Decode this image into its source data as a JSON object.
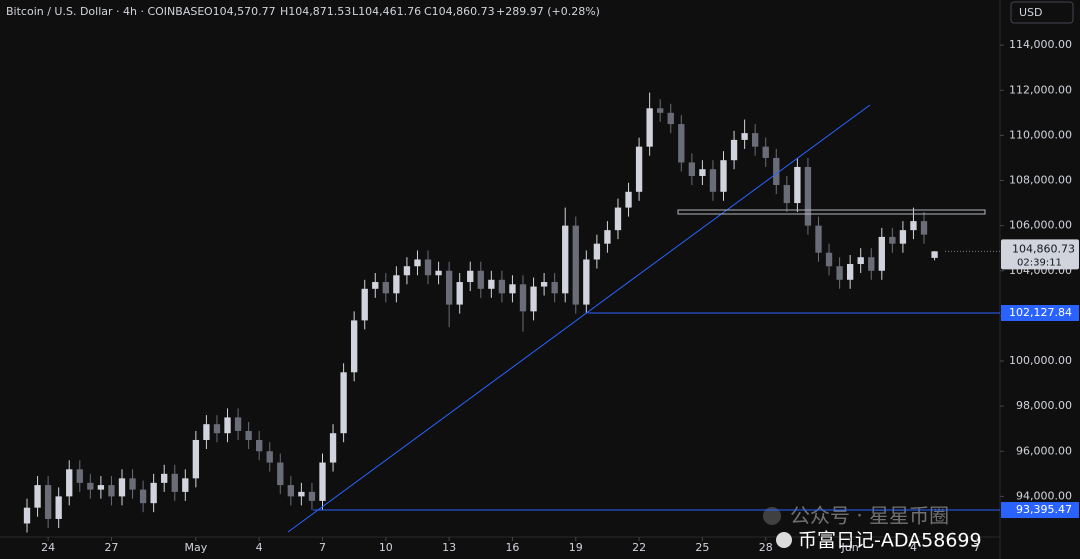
{
  "chart_data": {
    "type": "candlestick",
    "header": {
      "symbol": "Bitcoin / U.S. Dollar · 4h · COINBASE",
      "ohlc_labels": [
        "O104,570.77",
        "H104,871.53",
        "L104,461.76",
        "C104,860.73"
      ],
      "change_label": "+289.97 (+0.28%)"
    },
    "currency": "USD",
    "up_color": "#d1d4dc",
    "down_color": "#6a6d78",
    "xlim": [
      -2.56,
      92.2
    ],
    "xticks": [
      {
        "value": 2,
        "label": "24"
      },
      {
        "value": 8,
        "label": "27"
      },
      {
        "value": 16,
        "label": "May"
      },
      {
        "value": 22,
        "label": "4"
      },
      {
        "value": 28,
        "label": "7"
      },
      {
        "value": 34,
        "label": "10"
      },
      {
        "value": 40,
        "label": "13"
      },
      {
        "value": 46,
        "label": "16"
      },
      {
        "value": 52,
        "label": "19"
      },
      {
        "value": 58,
        "label": "22"
      },
      {
        "value": 64,
        "label": "25"
      },
      {
        "value": 70,
        "label": "28"
      },
      {
        "value": 78,
        "label": "Jun"
      },
      {
        "value": 84,
        "label": "4"
      },
      {
        "value": 90,
        "label": "7"
      }
    ],
    "ylim": [
      92200,
      116000
    ],
    "yticks": [
      {
        "value": 94000,
        "label": "94,000.00"
      },
      {
        "value": 96000,
        "label": "96,000.00"
      },
      {
        "value": 98000,
        "label": "98,000.00"
      },
      {
        "value": 100000,
        "label": "100,000.00"
      },
      {
        "value": 102000,
        "label": "102,000.00"
      },
      {
        "value": 104000,
        "label": "104,000.00"
      },
      {
        "value": 106000,
        "label": "106,000.00"
      },
      {
        "value": 108000,
        "label": "108,000.00"
      },
      {
        "value": 110000,
        "label": "110,000.00"
      },
      {
        "value": 112000,
        "label": "112,000.00"
      },
      {
        "value": 114000,
        "label": "114,000.00"
      }
    ],
    "levels": [
      {
        "value": 102127.84,
        "label": "102,127.84"
      },
      {
        "value": 93395.47,
        "label": "93,395.47"
      }
    ],
    "last_price": {
      "value": 104860.73,
      "label": "104,860.73",
      "countdown": "02:39:11"
    },
    "ohlc": [
      [
        92800,
        93900,
        92400,
        93500
      ],
      [
        93500,
        94900,
        93100,
        94500
      ],
      [
        94500,
        94900,
        92600,
        93000
      ],
      [
        93000,
        94400,
        92600,
        94000
      ],
      [
        94000,
        95600,
        93600,
        95200
      ],
      [
        95200,
        95600,
        94200,
        94600
      ],
      [
        94600,
        95000,
        93900,
        94300
      ],
      [
        94300,
        94900,
        93900,
        94500
      ],
      [
        94500,
        94900,
        93600,
        94000
      ],
      [
        94000,
        95200,
        93600,
        94800
      ],
      [
        94800,
        95200,
        93900,
        94300
      ],
      [
        94300,
        94700,
        93300,
        93700
      ],
      [
        93700,
        95000,
        93300,
        94600
      ],
      [
        94600,
        95400,
        94200,
        95000
      ],
      [
        95000,
        95400,
        93800,
        94200
      ],
      [
        94200,
        95200,
        93800,
        94800
      ],
      [
        94800,
        96900,
        94400,
        96500
      ],
      [
        96500,
        97600,
        96100,
        97200
      ],
      [
        97200,
        97600,
        96400,
        96800
      ],
      [
        96800,
        97900,
        96400,
        97500
      ],
      [
        97500,
        97900,
        96500,
        96900
      ],
      [
        96900,
        97300,
        96100,
        96500
      ],
      [
        96500,
        96900,
        95600,
        96000
      ],
      [
        96000,
        96400,
        95100,
        95500
      ],
      [
        95500,
        95900,
        94100,
        94500
      ],
      [
        94500,
        94900,
        93600,
        94000
      ],
      [
        94000,
        94600,
        93600,
        94200
      ],
      [
        94200,
        94600,
        93400,
        93800
      ],
      [
        93800,
        95900,
        93400,
        95500
      ],
      [
        95500,
        97200,
        95100,
        96800
      ],
      [
        96800,
        99900,
        96400,
        99500
      ],
      [
        99500,
        102200,
        99100,
        101800
      ],
      [
        101800,
        103600,
        101400,
        103200
      ],
      [
        103200,
        103900,
        102800,
        103500
      ],
      [
        103500,
        103900,
        102600,
        103000
      ],
      [
        103000,
        104200,
        102600,
        103800
      ],
      [
        103800,
        104600,
        103400,
        104200
      ],
      [
        104200,
        104900,
        103800,
        104500
      ],
      [
        104500,
        104900,
        103400,
        103800
      ],
      [
        103800,
        104400,
        103400,
        104000
      ],
      [
        104000,
        104400,
        101500,
        102500
      ],
      [
        102500,
        103900,
        102100,
        103500
      ],
      [
        103500,
        104400,
        103100,
        104000
      ],
      [
        104000,
        104400,
        102800,
        103200
      ],
      [
        103200,
        104000,
        102800,
        103600
      ],
      [
        103600,
        104000,
        102600,
        103000
      ],
      [
        103000,
        103800,
        102600,
        103400
      ],
      [
        103400,
        103800,
        101300,
        102200
      ],
      [
        102200,
        103700,
        101800,
        103300
      ],
      [
        103300,
        103900,
        102900,
        103500
      ],
      [
        103500,
        103900,
        102600,
        103000
      ],
      [
        103000,
        106800,
        102600,
        106000
      ],
      [
        106000,
        106400,
        102100,
        102500
      ],
      [
        102500,
        104900,
        102100,
        104500
      ],
      [
        104500,
        105600,
        104100,
        105200
      ],
      [
        105200,
        106200,
        104800,
        105800
      ],
      [
        105800,
        107200,
        105400,
        106800
      ],
      [
        106800,
        107900,
        106400,
        107500
      ],
      [
        107500,
        109900,
        107100,
        109500
      ],
      [
        109500,
        111900,
        109100,
        111200
      ],
      [
        111200,
        111600,
        110600,
        111000
      ],
      [
        111000,
        111400,
        110100,
        110500
      ],
      [
        110500,
        110900,
        108400,
        108800
      ],
      [
        108800,
        109200,
        107800,
        108200
      ],
      [
        108200,
        108900,
        107800,
        108500
      ],
      [
        108500,
        108900,
        107100,
        107500
      ],
      [
        107500,
        109300,
        107100,
        108900
      ],
      [
        108900,
        110200,
        108500,
        109800
      ],
      [
        109800,
        110700,
        109400,
        110100
      ],
      [
        110100,
        110500,
        109100,
        109500
      ],
      [
        109500,
        109900,
        108600,
        109000
      ],
      [
        109000,
        109400,
        107400,
        107800
      ],
      [
        107800,
        108200,
        106600,
        107000
      ],
      [
        107000,
        109000,
        106600,
        108600
      ],
      [
        108600,
        109000,
        105600,
        106000
      ],
      [
        106000,
        106400,
        104400,
        104800
      ],
      [
        104800,
        105200,
        103800,
        104200
      ],
      [
        104200,
        104600,
        103200,
        103600
      ],
      [
        103600,
        104700,
        103200,
        104300
      ],
      [
        104300,
        105000,
        103900,
        104600
      ],
      [
        104600,
        105000,
        103600,
        104000
      ],
      [
        104000,
        105900,
        103600,
        105500
      ],
      [
        105500,
        105900,
        104800,
        105200
      ],
      [
        105200,
        106200,
        104800,
        105800
      ],
      [
        105800,
        106800,
        105400,
        106200
      ],
      [
        106200,
        106600,
        105200,
        105600
      ],
      [
        104570.77,
        104871.53,
        104461.76,
        104860.73
      ]
    ],
    "watermark": [
      "公众号 · 星星币圈",
      "币富日记-ADA58699"
    ]
  }
}
